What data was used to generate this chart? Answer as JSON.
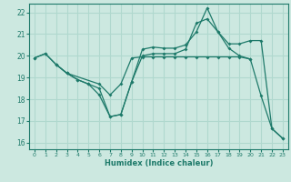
{
  "xlabel": "Humidex (Indice chaleur)",
  "xlim": [
    -0.5,
    23.5
  ],
  "ylim": [
    15.7,
    22.4
  ],
  "yticks": [
    16,
    17,
    18,
    19,
    20,
    21,
    22
  ],
  "xticks": [
    0,
    1,
    2,
    3,
    4,
    5,
    6,
    7,
    8,
    9,
    10,
    11,
    12,
    13,
    14,
    15,
    16,
    17,
    18,
    19,
    20,
    21,
    22,
    23
  ],
  "bg_color": "#cce8e0",
  "grid_color": "#b0d8ce",
  "line_color": "#1e7a6a",
  "lines": [
    {
      "x": [
        0,
        1,
        2,
        3,
        4,
        5,
        6,
        7,
        8,
        9,
        10,
        11,
        12,
        13,
        14,
        15,
        16,
        17,
        18,
        19,
        20,
        21,
        22,
        23
      ],
      "y": [
        19.9,
        20.1,
        19.6,
        19.2,
        18.9,
        18.7,
        18.2,
        17.2,
        17.3,
        18.8,
        20.3,
        20.4,
        20.35,
        20.35,
        20.5,
        21.1,
        22.2,
        21.1,
        20.35,
        20.0,
        19.85,
        18.15,
        16.65,
        16.2
      ]
    },
    {
      "x": [
        0,
        1,
        2,
        3,
        6,
        7,
        8,
        9,
        10,
        11,
        12,
        13,
        14,
        15,
        16,
        17,
        18,
        19,
        20
      ],
      "y": [
        19.9,
        20.1,
        19.6,
        19.2,
        18.7,
        18.2,
        18.7,
        19.9,
        19.95,
        19.95,
        19.95,
        19.95,
        19.95,
        19.95,
        19.95,
        19.95,
        19.95,
        19.95,
        19.85
      ]
    },
    {
      "x": [
        2,
        3,
        4,
        5,
        6,
        7,
        8,
        9,
        10,
        11,
        12,
        13,
        14,
        15,
        16,
        17,
        18,
        19,
        20,
        21,
        22,
        23
      ],
      "y": [
        19.6,
        19.2,
        18.9,
        18.7,
        18.5,
        17.2,
        17.3,
        18.8,
        20.0,
        20.1,
        20.1,
        20.1,
        20.3,
        21.5,
        21.7,
        21.1,
        20.55,
        20.55,
        20.7,
        20.7,
        16.65,
        16.2
      ]
    }
  ]
}
